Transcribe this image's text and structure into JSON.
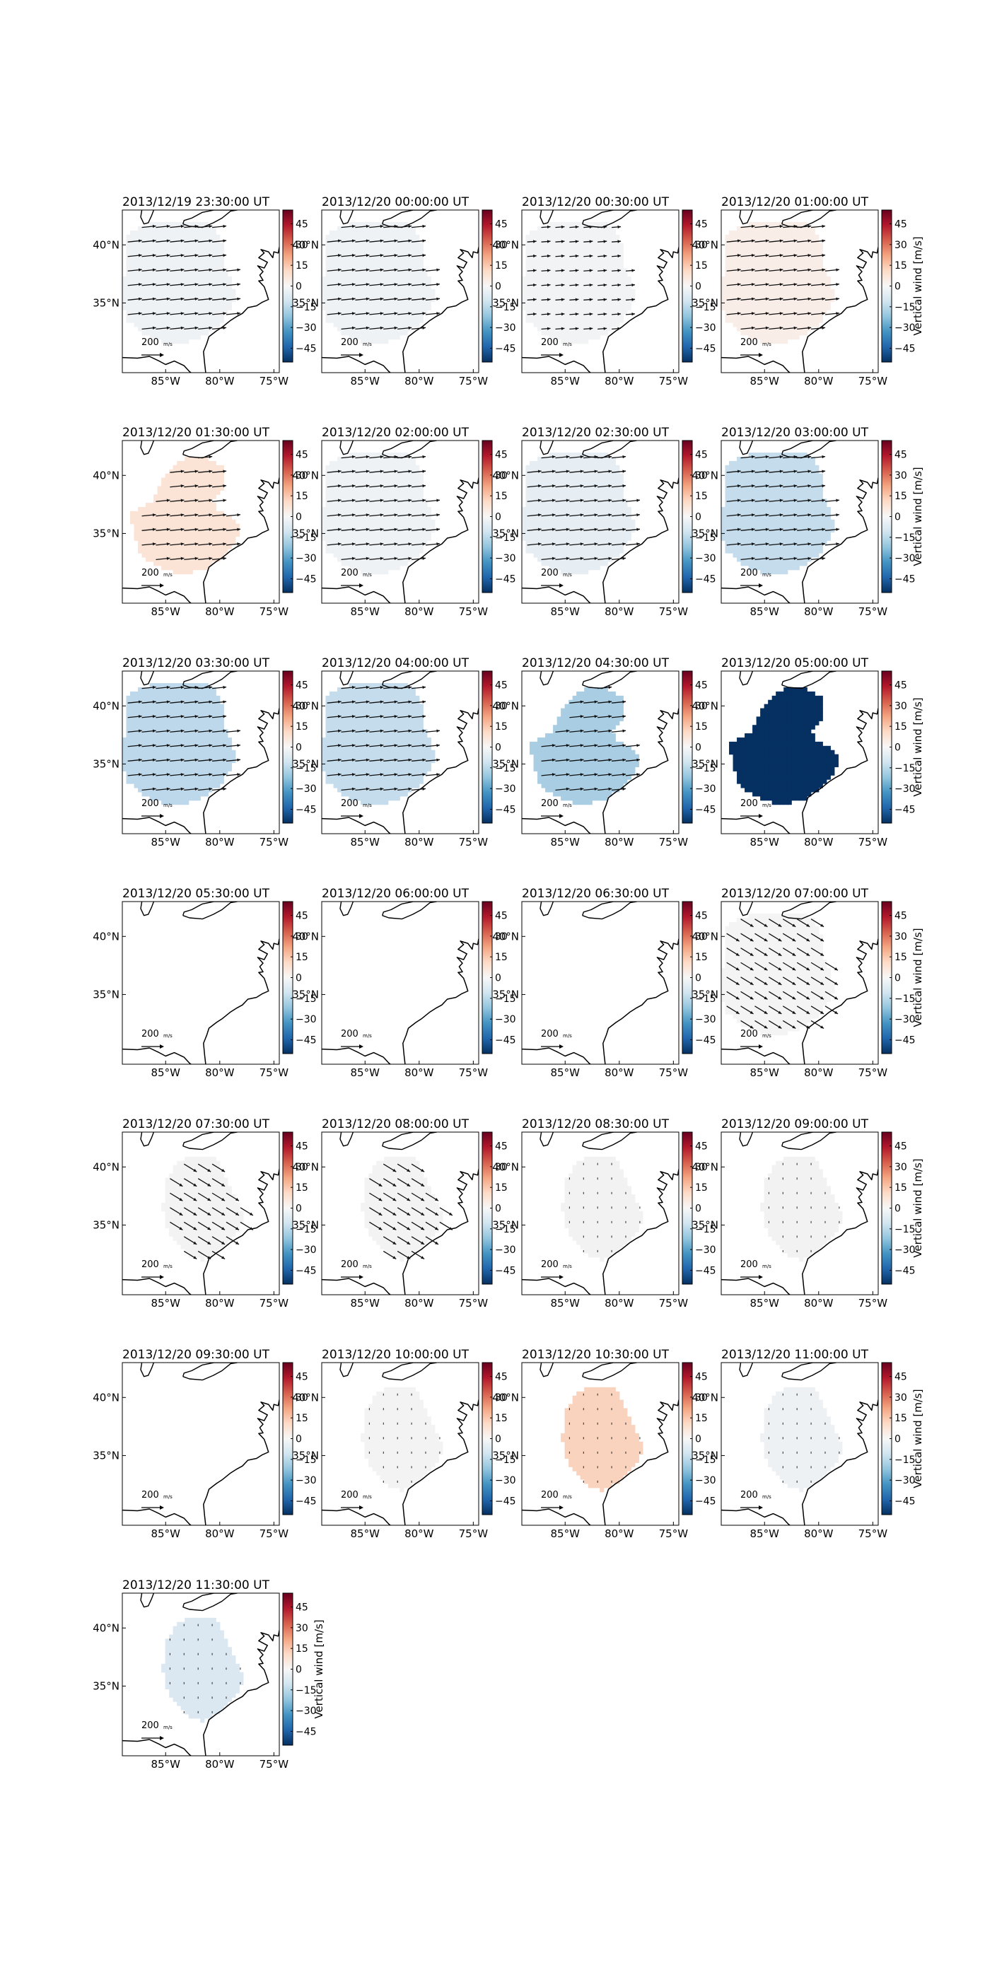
{
  "figure": {
    "colorbar_label": "Vertical wind [m/s]",
    "colorbar_ticks": [
      "45",
      "30",
      "15",
      "0",
      "−15",
      "−30",
      "−45"
    ],
    "colorbar_range": [
      -55,
      55
    ],
    "colormap": [
      "#053061",
      "#2166ac",
      "#4393c3",
      "#92c5de",
      "#d1e5f0",
      "#f7f7f7",
      "#fddbc7",
      "#f4a582",
      "#d6604d",
      "#b2182b",
      "#67001f"
    ],
    "xticks": [
      "85°W",
      "80°W",
      "75°W"
    ],
    "yticks": [
      "40°N",
      "35°N"
    ],
    "quiver_key_label": "200",
    "quiver_key_unit": "m/s"
  },
  "chart_data": [
    {
      "type": "heatmap",
      "title": "2013/12/19 23:30:00 UT",
      "mean_vertical_wind": -3,
      "fill": "#eef2f5",
      "region": "full",
      "vectors": "east"
    },
    {
      "type": "heatmap",
      "title": "2013/12/20 00:00:00 UT",
      "mean_vertical_wind": -3,
      "fill": "#eef2f5",
      "region": "full",
      "vectors": "east"
    },
    {
      "type": "heatmap",
      "title": "2013/12/20 00:30:00 UT",
      "mean_vertical_wind": -2,
      "fill": "#f1f3f5",
      "region": "full",
      "vectors": "east_short"
    },
    {
      "type": "heatmap",
      "title": "2013/12/20 01:00:00 UT",
      "mean_vertical_wind": 3,
      "fill": "#f9ede8",
      "region": "full",
      "vectors": "east"
    },
    {
      "type": "heatmap",
      "title": "2013/12/20 01:30:00 UT",
      "mean_vertical_wind": 8,
      "fill": "#fbe3d6",
      "region": "lobed",
      "vectors": "east"
    },
    {
      "type": "heatmap",
      "title": "2013/12/20 02:00:00 UT",
      "mean_vertical_wind": -3,
      "fill": "#eef2f5",
      "region": "full",
      "vectors": "east"
    },
    {
      "type": "heatmap",
      "title": "2013/12/20 02:30:00 UT",
      "mean_vertical_wind": -5,
      "fill": "#e6eef4",
      "region": "full",
      "vectors": "east"
    },
    {
      "type": "heatmap",
      "title": "2013/12/20 03:00:00 UT",
      "mean_vertical_wind": -18,
      "fill": "#c4dcec",
      "region": "full",
      "vectors": "east"
    },
    {
      "type": "heatmap",
      "title": "2013/12/20 03:30:00 UT",
      "mean_vertical_wind": -20,
      "fill": "#bcd8ea",
      "region": "full",
      "vectors": "east"
    },
    {
      "type": "heatmap",
      "title": "2013/12/20 04:00:00 UT",
      "mean_vertical_wind": -18,
      "fill": "#c4dcec",
      "region": "full",
      "vectors": "east"
    },
    {
      "type": "heatmap",
      "title": "2013/12/20 04:30:00 UT",
      "mean_vertical_wind": -25,
      "fill": "#a9cde3",
      "region": "lobed",
      "vectors": "east"
    },
    {
      "type": "heatmap",
      "title": "2013/12/20 05:00:00 UT",
      "mean_vertical_wind": -55,
      "fill": "#053061",
      "region": "lobed",
      "vectors": "none"
    },
    {
      "type": "heatmap",
      "title": "2013/12/20 05:30:00 UT",
      "mean_vertical_wind": null,
      "fill": "none",
      "region": "none",
      "vectors": "none"
    },
    {
      "type": "heatmap",
      "title": "2013/12/20 06:00:00 UT",
      "mean_vertical_wind": null,
      "fill": "none",
      "region": "none",
      "vectors": "none"
    },
    {
      "type": "heatmap",
      "title": "2013/12/20 06:30:00 UT",
      "mean_vertical_wind": null,
      "fill": "none",
      "region": "none",
      "vectors": "none"
    },
    {
      "type": "heatmap",
      "title": "2013/12/20 07:00:00 UT",
      "mean_vertical_wind": 0,
      "fill": "#f4f4f4",
      "region": "full",
      "vectors": "southeast"
    },
    {
      "type": "heatmap",
      "title": "2013/12/20 07:30:00 UT",
      "mean_vertical_wind": 0,
      "fill": "#f3f3f3",
      "region": "east",
      "vectors": "southeast"
    },
    {
      "type": "heatmap",
      "title": "2013/12/20 08:00:00 UT",
      "mean_vertical_wind": 0,
      "fill": "#f3f3f3",
      "region": "east",
      "vectors": "southeast"
    },
    {
      "type": "heatmap",
      "title": "2013/12/20 08:30:00 UT",
      "mean_vertical_wind": 0,
      "fill": "#f2f2f2",
      "region": "east",
      "vectors": "dots"
    },
    {
      "type": "heatmap",
      "title": "2013/12/20 09:00:00 UT",
      "mean_vertical_wind": 0,
      "fill": "#f2f2f2",
      "region": "east",
      "vectors": "dots"
    },
    {
      "type": "heatmap",
      "title": "2013/12/20 09:30:00 UT",
      "mean_vertical_wind": null,
      "fill": "none",
      "region": "none",
      "vectors": "none"
    },
    {
      "type": "heatmap",
      "title": "2013/12/20 10:00:00 UT",
      "mean_vertical_wind": 0,
      "fill": "#f3f3f3",
      "region": "east",
      "vectors": "dots"
    },
    {
      "type": "heatmap",
      "title": "2013/12/20 10:30:00 UT",
      "mean_vertical_wind": 12,
      "fill": "#f9d3bd",
      "region": "east",
      "vectors": "dots"
    },
    {
      "type": "heatmap",
      "title": "2013/12/20 11:00:00 UT",
      "mean_vertical_wind": -3,
      "fill": "#edf1f4",
      "region": "east",
      "vectors": "dots"
    },
    {
      "type": "heatmap",
      "title": "2013/12/20 11:30:00 UT",
      "mean_vertical_wind": -8,
      "fill": "#dce8f1",
      "region": "east",
      "vectors": "dots"
    }
  ]
}
